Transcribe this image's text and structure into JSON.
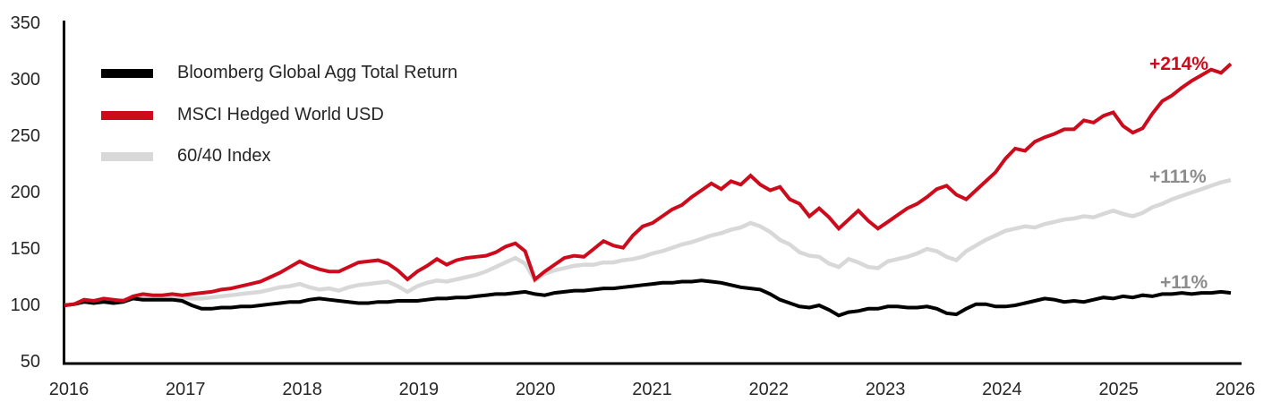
{
  "chart_data": {
    "type": "line",
    "title": "",
    "xlabel": "",
    "ylabel": "",
    "x_tick_labels": [
      "2016",
      "2017",
      "2018",
      "2019",
      "2020",
      "2021",
      "2022",
      "2023",
      "2024",
      "2025",
      "2026"
    ],
    "y_tick_labels": [
      "350",
      "300",
      "250",
      "200",
      "150",
      "100",
      "50"
    ],
    "y_ticks": [
      350,
      300,
      250,
      200,
      150,
      100,
      50
    ],
    "ylim": [
      50,
      350
    ],
    "x_range_years": [
      2016,
      2026
    ],
    "points_per_year": 12,
    "grid": false,
    "legend_position": "top-left",
    "series": [
      {
        "name": "Bloomberg Global Agg Total Return",
        "color": "#000000",
        "end_label": "+11%",
        "z": 1,
        "values": [
          100,
          101,
          103,
          102,
          103,
          102,
          103,
          106,
          105,
          105,
          105,
          105,
          104,
          100,
          97,
          97,
          98,
          98,
          99,
          99,
          100,
          101,
          102,
          103,
          103,
          105,
          106,
          105,
          104,
          103,
          102,
          102,
          103,
          103,
          104,
          104,
          104,
          105,
          106,
          106,
          107,
          107,
          108,
          109,
          110,
          110,
          111,
          112,
          110,
          109,
          111,
          112,
          113,
          113,
          114,
          115,
          115,
          116,
          117,
          118,
          119,
          120,
          120,
          121,
          121,
          122,
          121,
          120,
          118,
          116,
          115,
          114,
          110,
          105,
          102,
          99,
          98,
          100,
          96,
          91,
          94,
          95,
          97,
          97,
          99,
          99,
          98,
          98,
          99,
          97,
          93,
          92,
          97,
          101,
          101,
          99,
          99,
          100,
          102,
          104,
          106,
          105,
          103,
          104,
          103,
          105,
          107,
          106,
          108,
          107,
          109,
          108,
          110,
          110,
          111,
          110,
          111,
          111,
          112,
          111
        ]
      },
      {
        "name": "MSCI Hedged World USD",
        "color": "#cc0c1c",
        "end_label": "+214%",
        "z": 2,
        "values": [
          100,
          101,
          105,
          104,
          106,
          105,
          104,
          108,
          110,
          109,
          109,
          110,
          109,
          110,
          111,
          112,
          114,
          115,
          117,
          119,
          121,
          125,
          129,
          134,
          139,
          135,
          132,
          130,
          130,
          134,
          138,
          139,
          140,
          137,
          131,
          123,
          130,
          135,
          141,
          136,
          140,
          142,
          143,
          144,
          147,
          152,
          155,
          148,
          123,
          130,
          136,
          142,
          144,
          143,
          150,
          157,
          153,
          151,
          162,
          170,
          173,
          179,
          185,
          189,
          196,
          202,
          208,
          203,
          210,
          207,
          215,
          207,
          202,
          205,
          194,
          190,
          179,
          186,
          178,
          168,
          176,
          184,
          175,
          168,
          174,
          180,
          186,
          190,
          196,
          203,
          206,
          198,
          194,
          202,
          210,
          218,
          230,
          239,
          237,
          245,
          249,
          252,
          256,
          256,
          264,
          262,
          268,
          271,
          259,
          253,
          257,
          270,
          281,
          286,
          293,
          299,
          304,
          309,
          306,
          314
        ]
      },
      {
        "name": "60/40 Index",
        "color": "#d8d8d8",
        "end_label": "+111%",
        "z": 0,
        "values": [
          100,
          101,
          103,
          104,
          104,
          103,
          105,
          106,
          107,
          106,
          107,
          108,
          107,
          106,
          106,
          107,
          108,
          109,
          110,
          111,
          112,
          114,
          116,
          117,
          119,
          116,
          114,
          115,
          113,
          116,
          118,
          119,
          120,
          121,
          117,
          112,
          117,
          120,
          122,
          121,
          123,
          125,
          127,
          130,
          134,
          138,
          142,
          137,
          122,
          128,
          131,
          133,
          135,
          136,
          136,
          138,
          138,
          140,
          141,
          143,
          146,
          148,
          151,
          154,
          156,
          159,
          162,
          164,
          167,
          169,
          173,
          170,
          165,
          158,
          154,
          147,
          144,
          143,
          137,
          134,
          141,
          138,
          134,
          133,
          139,
          141,
          143,
          146,
          150,
          148,
          143,
          140,
          148,
          153,
          158,
          162,
          166,
          168,
          170,
          169,
          172,
          174,
          176,
          177,
          179,
          178,
          181,
          184,
          181,
          179,
          182,
          187,
          190,
          194,
          197,
          200,
          203,
          206,
          209,
          211
        ]
      }
    ]
  },
  "legend": {
    "items": [
      {
        "label": "Bloomberg Global Agg Total Return"
      },
      {
        "label": "MSCI Hedged World USD"
      },
      {
        "label": "60/40 Index"
      }
    ]
  },
  "annotations": [
    {
      "text": "+214%",
      "color": "#cc0c1c"
    },
    {
      "text": "+111%",
      "color": "#8c8c8c"
    },
    {
      "text": "+11%",
      "color": "#8c8c8c"
    }
  ],
  "colors": {
    "axis": "#000000",
    "tick_text": "#262626",
    "background": "#ffffff"
  }
}
